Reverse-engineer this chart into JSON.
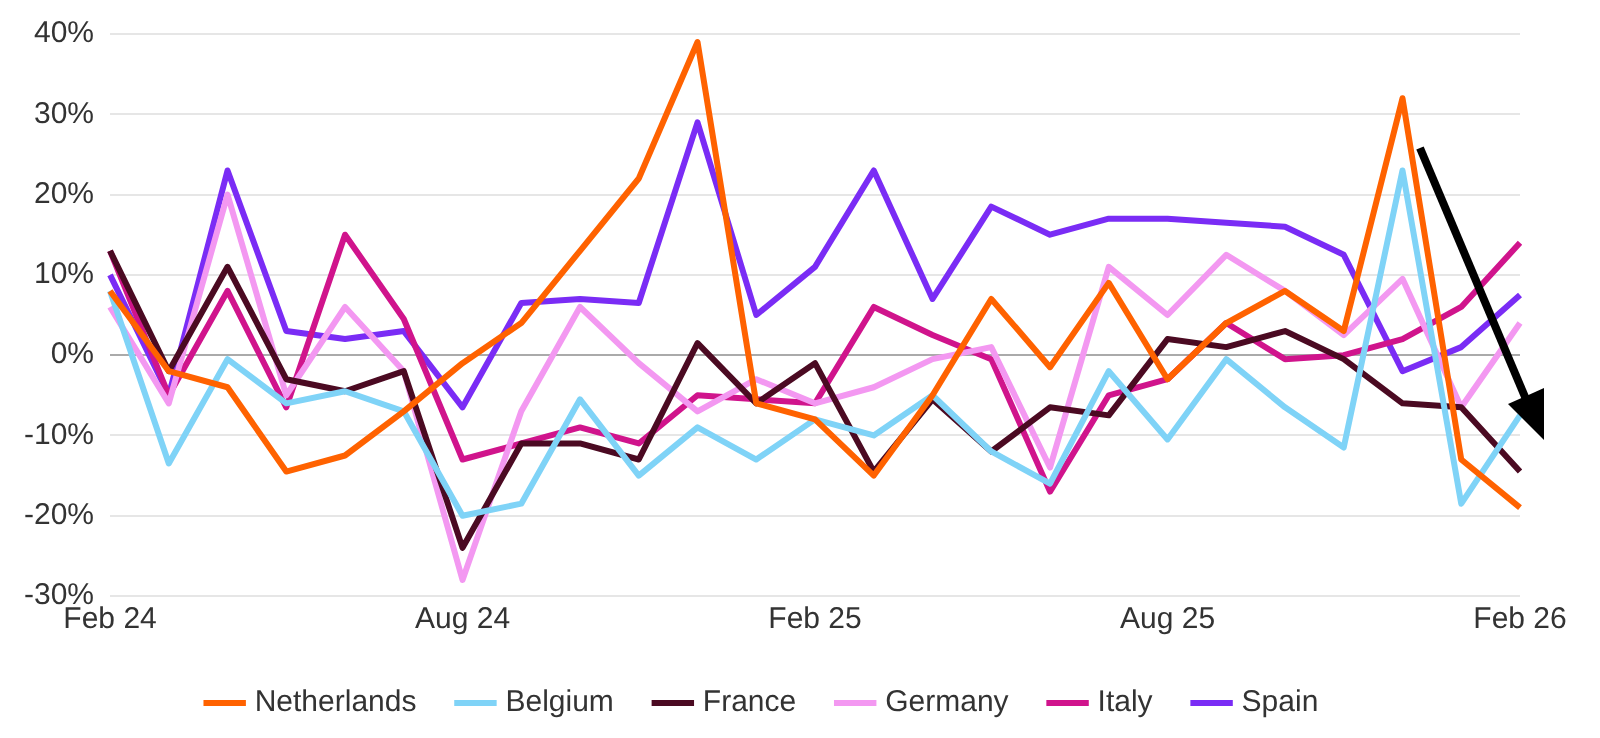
{
  "chart_data": {
    "type": "line",
    "categories": [
      "Feb 24",
      null,
      null,
      null,
      null,
      null,
      "Aug 24",
      null,
      null,
      null,
      null,
      null,
      "Feb 25",
      null,
      null,
      null,
      null,
      null,
      "Aug 25",
      null,
      null,
      null,
      null,
      null,
      "Feb 26"
    ],
    "series": [
      {
        "name": "Netherlands",
        "color": "#ff6200",
        "values": [
          8,
          -2,
          -4,
          -14.5,
          -12.5,
          -7,
          -1,
          4,
          13,
          22,
          39,
          -6,
          -8,
          -15,
          -5,
          7,
          -1.5,
          9,
          -3,
          4,
          8,
          3,
          32,
          -13,
          -19
        ]
      },
      {
        "name": "Belgium",
        "color": "#7fd3f7",
        "values": [
          8,
          -13.5,
          -0.5,
          -6,
          -4.5,
          -7,
          -20,
          -18.5,
          -5.5,
          -15,
          -9,
          -13,
          -8,
          -10,
          -5,
          -12,
          -16,
          -2,
          -10.5,
          -0.5,
          -6.5,
          -11.5,
          23,
          -18.5,
          -7.5
        ]
      },
      {
        "name": "France",
        "color": "#4b0a22",
        "values": [
          13,
          -2,
          11,
          -3,
          -4.5,
          -2,
          -24,
          -11,
          -11,
          -13,
          1.5,
          -6,
          -1,
          -14.5,
          -5.5,
          -12,
          -6.5,
          -7.5,
          2,
          1,
          3,
          -0.5,
          -6,
          -6.5,
          -14.5
        ]
      },
      {
        "name": "Germany",
        "color": "#f398f1",
        "values": [
          6,
          -6,
          20,
          -5,
          6,
          -2,
          -28,
          -7,
          6,
          -1,
          -7,
          -3,
          -6,
          -4,
          -0.5,
          1,
          -14,
          11,
          5,
          12.5,
          8,
          2.5,
          9.5,
          -6.5,
          4
        ]
      },
      {
        "name": "Italy",
        "color": "#d0148c",
        "values": [
          13,
          -5,
          8,
          -6.5,
          15,
          4.5,
          -13,
          -11,
          -9,
          -11,
          -5,
          -5.5,
          -6,
          6,
          2.5,
          -0.5,
          -17,
          -5,
          -3,
          4,
          -0.5,
          0,
          2,
          6,
          14
        ]
      },
      {
        "name": "Spain",
        "color": "#7a2cf5",
        "values": [
          10,
          -5,
          23,
          3,
          2,
          3,
          -6.5,
          6.5,
          7,
          6.5,
          29,
          5,
          11,
          23,
          7,
          18.5,
          15,
          17,
          17,
          16.5,
          16,
          12.5,
          -2,
          1,
          7.5
        ]
      }
    ],
    "ylim": [
      -30,
      40
    ],
    "yticks": [
      {
        "value": -30,
        "label": "-30%"
      },
      {
        "value": -20,
        "label": "-20%"
      },
      {
        "value": -10,
        "label": "-10%"
      },
      {
        "value": 0,
        "label": "0%"
      },
      {
        "value": 10,
        "label": "10%"
      },
      {
        "value": 20,
        "label": "20%"
      },
      {
        "value": 30,
        "label": "30%"
      },
      {
        "value": 40,
        "label": "40%"
      }
    ],
    "grid": "y",
    "legend": "bottom",
    "marker": "none",
    "line_style": "solid"
  }
}
